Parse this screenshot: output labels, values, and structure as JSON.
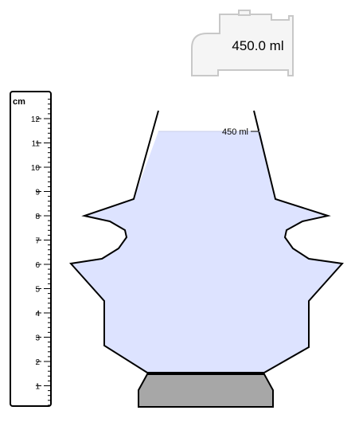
{
  "faucet": {
    "flow_readout": "450.0 ml"
  },
  "ruler": {
    "unit_label": "cm",
    "ticks": [
      "1",
      "2",
      "3",
      "4",
      "5",
      "6",
      "7",
      "8",
      "9",
      "10",
      "11",
      "12"
    ]
  },
  "container": {
    "fill_marker_label": "450 ml",
    "water_color": "#dde3ff",
    "outline_color": "#000000",
    "base_color": "#a7a7a7"
  },
  "faucet_colors": {
    "body": "#f5f5f5",
    "outline": "#c8c8c8"
  }
}
